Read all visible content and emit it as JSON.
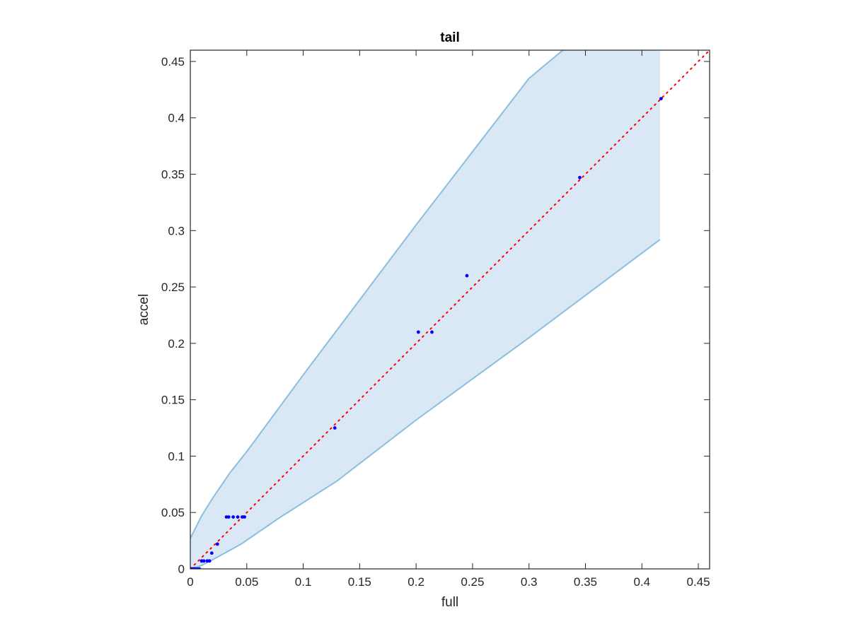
{
  "chart_data": {
    "type": "scatter",
    "title": "tail",
    "xlabel": "full",
    "ylabel": "accel",
    "xlim": [
      0,
      0.46
    ],
    "ylim": [
      0,
      0.46
    ],
    "xticks": [
      0,
      0.05,
      0.1,
      0.15,
      0.2,
      0.25,
      0.3,
      0.35,
      0.4,
      0.45
    ],
    "yticks": [
      0,
      0.05,
      0.1,
      0.15,
      0.2,
      0.25,
      0.3,
      0.35,
      0.4,
      0.45
    ],
    "xtick_labels": [
      "0",
      "0.05",
      "0.1",
      "0.15",
      "0.2",
      "0.25",
      "0.3",
      "0.35",
      "0.4",
      "0.45"
    ],
    "ytick_labels": [
      "0",
      "0.05",
      "0.1",
      "0.15",
      "0.2",
      "0.25",
      "0.3",
      "0.35",
      "0.4",
      "0.45"
    ],
    "grid": false,
    "band": {
      "fill_color": "#d9e8f4",
      "edge_color": "#88bfe0",
      "x_end": 0.416,
      "upper": [
        [
          0,
          0.027
        ],
        [
          0.005,
          0.037
        ],
        [
          0.01,
          0.047
        ],
        [
          0.02,
          0.063
        ],
        [
          0.035,
          0.085
        ],
        [
          0.05,
          0.104
        ],
        [
          0.1,
          0.172
        ],
        [
          0.2,
          0.305
        ],
        [
          0.3,
          0.435
        ],
        [
          0.33,
          0.46
        ]
      ],
      "lower": [
        [
          0,
          0
        ],
        [
          0.01,
          0.003
        ],
        [
          0.025,
          0.011
        ],
        [
          0.045,
          0.022
        ],
        [
          0.08,
          0.046
        ],
        [
          0.13,
          0.078
        ],
        [
          0.2,
          0.132
        ],
        [
          0.3,
          0.205
        ],
        [
          0.416,
          0.292
        ]
      ]
    },
    "reference_line": {
      "style": "dotted",
      "color": "#ff0000",
      "from": [
        0,
        0
      ],
      "to": [
        0.46,
        0.46
      ]
    },
    "points_color": "#0000ff",
    "points": [
      [
        0,
        0
      ],
      [
        0.001,
        0
      ],
      [
        0.002,
        0
      ],
      [
        0.003,
        0
      ],
      [
        0.004,
        0
      ],
      [
        0.006,
        0
      ],
      [
        0.008,
        0
      ],
      [
        0.01,
        0.007
      ],
      [
        0.012,
        0.007
      ],
      [
        0.015,
        0.007
      ],
      [
        0.017,
        0.007
      ],
      [
        0.019,
        0.014
      ],
      [
        0.024,
        0.022
      ],
      [
        0.032,
        0.046
      ],
      [
        0.034,
        0.046
      ],
      [
        0.038,
        0.046
      ],
      [
        0.042,
        0.046
      ],
      [
        0.046,
        0.046
      ],
      [
        0.048,
        0.046
      ],
      [
        0.128,
        0.125
      ],
      [
        0.202,
        0.21
      ],
      [
        0.214,
        0.21
      ],
      [
        0.245,
        0.26
      ],
      [
        0.345,
        0.347
      ],
      [
        0.417,
        0.417
      ]
    ]
  }
}
